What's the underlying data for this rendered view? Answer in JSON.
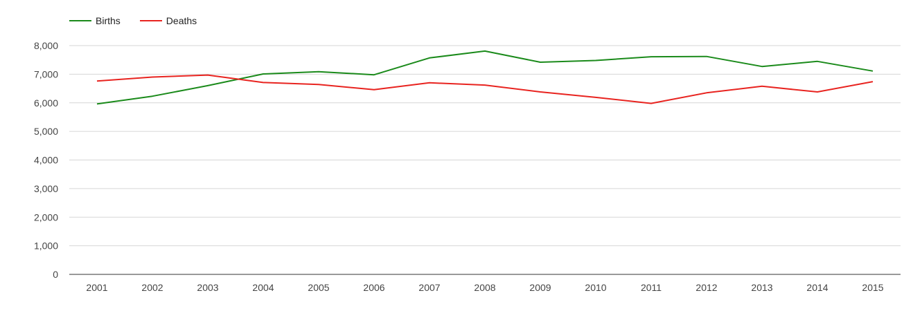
{
  "chart_data": {
    "type": "line",
    "categories": [
      "2001",
      "2002",
      "2003",
      "2004",
      "2005",
      "2006",
      "2007",
      "2008",
      "2009",
      "2010",
      "2011",
      "2012",
      "2013",
      "2014",
      "2015"
    ],
    "series": [
      {
        "name": "Births",
        "color": "#1a8a1a",
        "values": [
          5960,
          6230,
          6600,
          7010,
          7090,
          6980,
          7570,
          7810,
          7420,
          7480,
          7610,
          7620,
          7270,
          7450,
          7110
        ]
      },
      {
        "name": "Deaths",
        "color": "#e8231f",
        "values": [
          6760,
          6900,
          6970,
          6710,
          6640,
          6460,
          6700,
          6620,
          6380,
          6190,
          5980,
          6350,
          6580,
          6380,
          6740
        ]
      }
    ],
    "y_ticks": [
      "0",
      "1,000",
      "2,000",
      "3,000",
      "4,000",
      "5,000",
      "6,000",
      "7,000",
      "8,000"
    ],
    "ylim": [
      0,
      8000
    ],
    "grid": true,
    "legend_position": "top-left"
  }
}
